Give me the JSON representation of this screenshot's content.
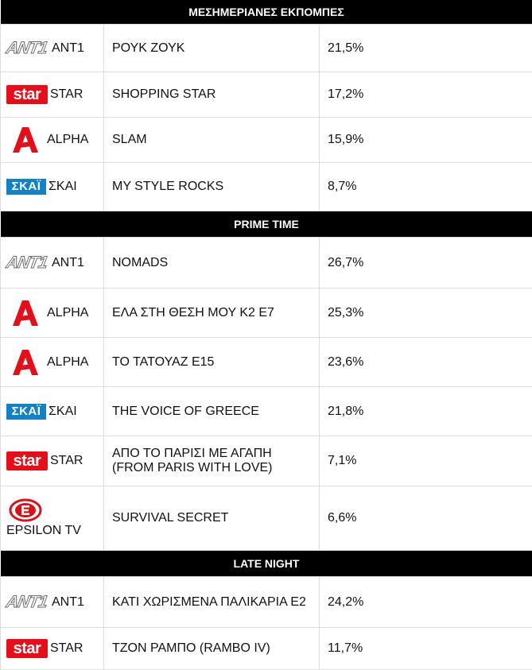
{
  "sections": [
    {
      "title": "ΜΕΣΗΜΕΡΙΑΝΕΣ ΕΚΠΟΜΠΕΣ",
      "rows": [
        {
          "logo": "ant1-logo",
          "channel": "ANT1",
          "program": "ΡΟΥΚ ΖΟΥΚ",
          "share": "21,5%"
        },
        {
          "logo": "star-logo",
          "channel": "STAR",
          "program": "SHOPPING STAR",
          "share": "17,2%"
        },
        {
          "logo": "alpha-logo",
          "channel": "ALPHA",
          "program": "SLAM",
          "share": "15,9%"
        },
        {
          "logo": "skai-logo",
          "channel": "ΣΚΑΙ",
          "program": "MY STYLE ROCKS",
          "share": "8,7%"
        }
      ]
    },
    {
      "title": "PRIME TIME",
      "rows": [
        {
          "logo": "ant1-logo",
          "channel": "ANT1",
          "program": "NOMADS",
          "share": "26,7%"
        },
        {
          "logo": "alpha-logo",
          "channel": "ALPHA",
          "program": "ΕΛΑ ΣΤΗ ΘΕΣΗ ΜΟΥ Κ2 Ε7",
          "share": "25,3%"
        },
        {
          "logo": "alpha-logo",
          "channel": "ALPHA",
          "program": "ΤΟ ΤΑΤΟΥΑΖ Ε15",
          "share": "23,6%"
        },
        {
          "logo": "skai-logo",
          "channel": "ΣΚΑΙ",
          "program": "THE VOICE OF GREECE",
          "share": "21,8%"
        },
        {
          "logo": "star-logo",
          "channel": "STAR",
          "program": "ΑΠΟ ΤΟ ΠΑΡΙΣΙ ΜΕ ΑΓΑΠΗ (FROM PARIS WITH LOVE)",
          "share": "7,1%"
        },
        {
          "logo": "epsilon-logo",
          "channel": "EPSILON TV",
          "program": "SURVIVAL SECRET",
          "share": "6,6%"
        }
      ]
    },
    {
      "title": "LATE NIGHT",
      "rows": [
        {
          "logo": "ant1-logo",
          "channel": "ANT1",
          "program": "ΚΑΤΙ ΧΩΡΙΣΜΕΝΑ ΠΑΛΙΚΑΡΙΑ Ε2",
          "share": "24,2%"
        },
        {
          "logo": "star-logo",
          "channel": "STAR",
          "program": "ΤΖΟΝ ΡΑΜΠΟ (RAMBO IV)",
          "share": "11,7%"
        }
      ]
    }
  ],
  "logos": {
    "ant1": "ANT1",
    "star": "star",
    "skai": "ΣΚΑΪ"
  },
  "colors": {
    "header_bg": "#000000",
    "star_red": "#e3101b",
    "alpha_red": "#e3101b",
    "skai_blue": "#1481c4",
    "border": "#dcdcdc"
  }
}
